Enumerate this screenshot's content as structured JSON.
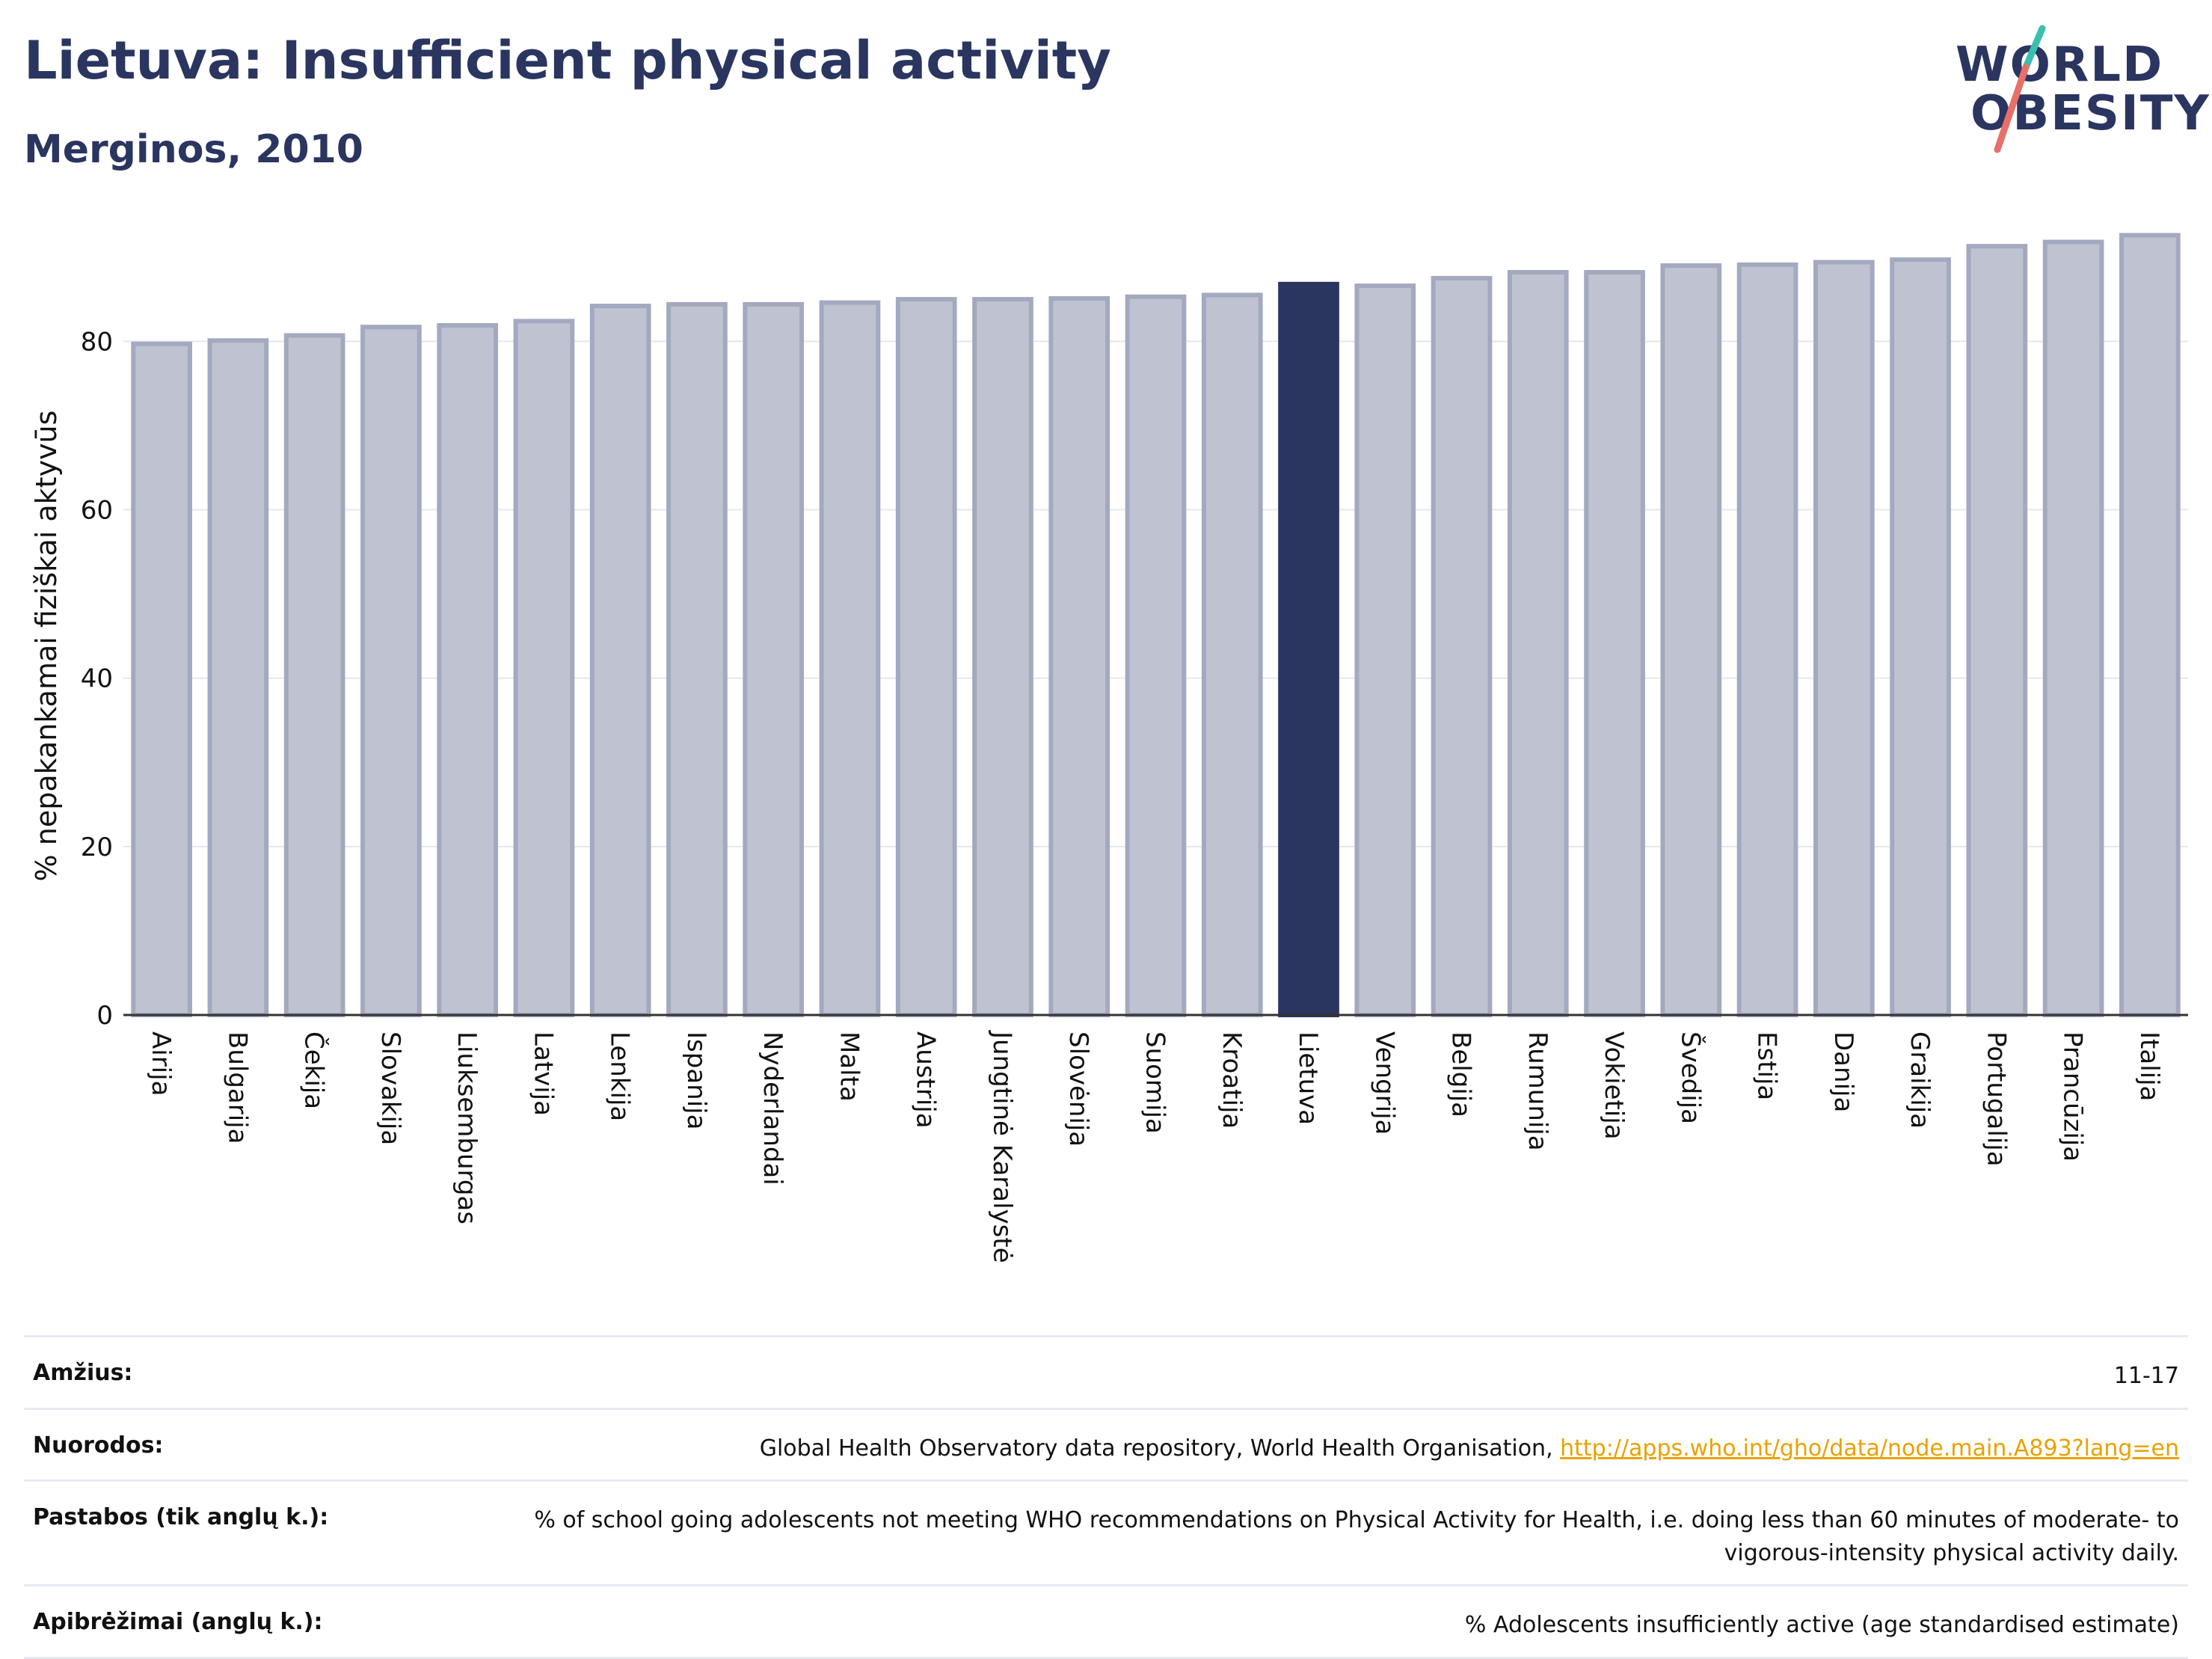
{
  "header": {
    "title": "Lietuva: Insufficient physical activity",
    "subtitle": "Merginos, 2010"
  },
  "logo": {
    "line1": "WORLD",
    "line2": "OBESITY",
    "colors": {
      "text": "#2a3560",
      "slash_top": "#3bbfb0",
      "slash_bottom": "#e8706a"
    }
  },
  "colors": {
    "bar": "#bfc3d1",
    "bar_stroke": "#a3a9bf",
    "highlight": "#2a3560",
    "grid": "#e6e7ec",
    "axis": "#333333",
    "link": "#e8a200"
  },
  "chart_data": {
    "type": "bar",
    "title": "Lietuva: Insufficient physical activity",
    "subtitle": "Merginos, 2010",
    "xlabel": "",
    "ylabel": "% nepakankamai fiziškai aktyvūs",
    "ylim": [
      0,
      93
    ],
    "yticks": [
      0,
      20,
      40,
      60,
      80
    ],
    "grid": true,
    "highlight": "Lietuva",
    "categories": [
      "Airija",
      "Bulgarija",
      "Čekija",
      "Slovakija",
      "Liuksemburgas",
      "Latvija",
      "Lenkija",
      "Ispanija",
      "Nyderlandai",
      "Malta",
      "Austrija",
      "Jungtinė Karalystė",
      "Slovėnija",
      "Suomija",
      "Kroatija",
      "Lietuva",
      "Vengrija",
      "Belgija",
      "Rumunija",
      "Vokietija",
      "Švedija",
      "Estija",
      "Danija",
      "Graikija",
      "Portugalija",
      "Prancūzija",
      "Italija"
    ],
    "values": [
      79.7,
      80.1,
      80.7,
      81.7,
      81.9,
      82.4,
      84.2,
      84.4,
      84.4,
      84.6,
      85.0,
      85.0,
      85.1,
      85.3,
      85.5,
      86.8,
      86.6,
      87.5,
      88.2,
      88.2,
      89.0,
      89.1,
      89.4,
      89.7,
      91.3,
      91.8,
      92.6
    ]
  },
  "metadata": [
    {
      "key": "Amžius:",
      "value": "11-17"
    },
    {
      "key": "Nuorodos:",
      "value": "Global Health Observatory data repository, World Health Organisation, ",
      "link": "http://apps.who.int/gho/data/node.main.A893?lang=en"
    },
    {
      "key": "Pastabos (tik anglų k.):",
      "value": "% of school going adolescents not meeting WHO recommendations on Physical Activity for Health, i.e. doing less than 60 minutes of moderate- to vigorous-intensity physical activity daily."
    },
    {
      "key": "Apibrėžimai (anglų k.):",
      "value": "% Adolescents insufficiently active (age standardised estimate)"
    }
  ]
}
